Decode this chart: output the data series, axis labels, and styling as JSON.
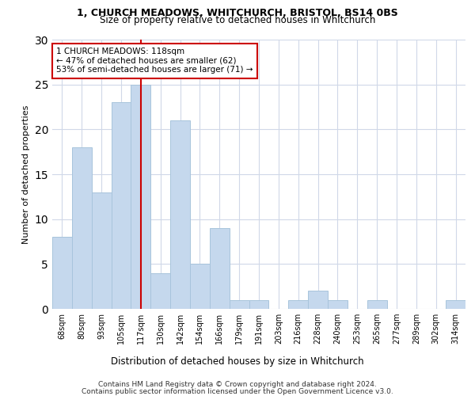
{
  "title": "1, CHURCH MEADOWS, WHITCHURCH, BRISTOL, BS14 0BS",
  "subtitle": "Size of property relative to detached houses in Whitchurch",
  "xlabel": "Distribution of detached houses by size in Whitchurch",
  "ylabel": "Number of detached properties",
  "categories": [
    "68sqm",
    "80sqm",
    "93sqm",
    "105sqm",
    "117sqm",
    "130sqm",
    "142sqm",
    "154sqm",
    "166sqm",
    "179sqm",
    "191sqm",
    "203sqm",
    "216sqm",
    "228sqm",
    "240sqm",
    "253sqm",
    "265sqm",
    "277sqm",
    "289sqm",
    "302sqm",
    "314sqm"
  ],
  "values": [
    8,
    18,
    13,
    23,
    25,
    4,
    21,
    5,
    9,
    1,
    1,
    0,
    1,
    2,
    1,
    0,
    1,
    0,
    0,
    0,
    1
  ],
  "bar_color": "#c5d8ed",
  "bar_edge_color": "#a8c4dc",
  "vline_x": 4,
  "vline_color": "#cc0000",
  "annotation_text": "1 CHURCH MEADOWS: 118sqm\n← 47% of detached houses are smaller (62)\n53% of semi-detached houses are larger (71) →",
  "annotation_box_color": "#ffffff",
  "annotation_box_edge": "#cc0000",
  "ylim": [
    0,
    30
  ],
  "yticks": [
    0,
    5,
    10,
    15,
    20,
    25,
    30
  ],
  "footer1": "Contains HM Land Registry data © Crown copyright and database right 2024.",
  "footer2": "Contains public sector information licensed under the Open Government Licence v3.0.",
  "bg_color": "#ffffff",
  "grid_color": "#d0d8e8"
}
